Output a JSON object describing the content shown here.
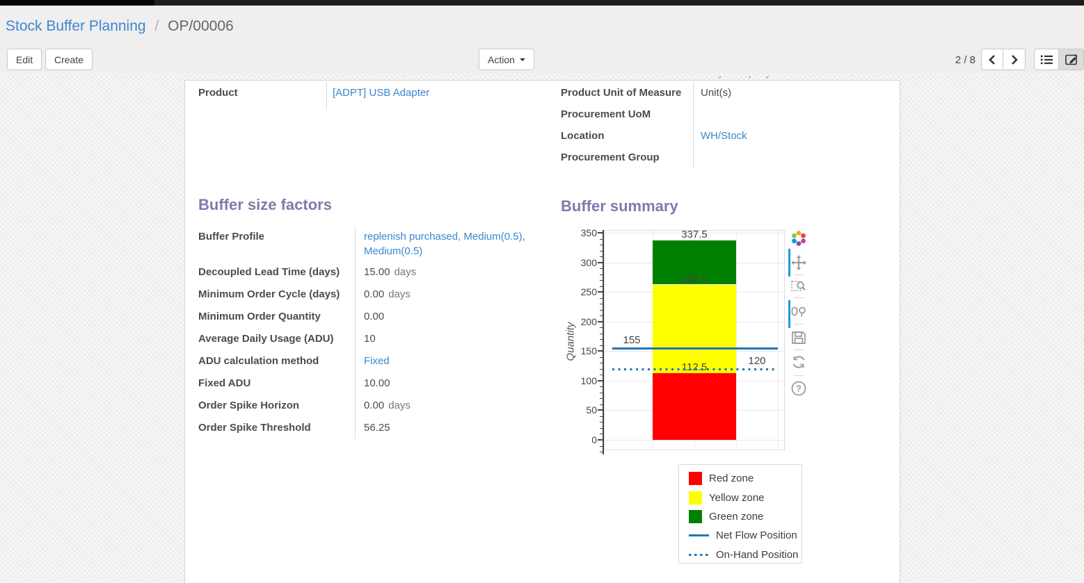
{
  "breadcrumb": {
    "parent": "Stock Buffer Planning",
    "separator": "/",
    "current": "OP/00006"
  },
  "control_panel": {
    "edit_label": "Edit",
    "create_label": "Create",
    "action_label": "Action",
    "pager": "2 / 8",
    "icons": [
      "previous-icon",
      "next-icon",
      "list-view-icon",
      "form-view-icon"
    ]
  },
  "form": {
    "clipped_top_value": "My Company",
    "left_fields": [
      {
        "label": "Product",
        "value": "[ADPT] USB Adapter",
        "link": true,
        "suffix": ""
      }
    ],
    "right_fields": [
      {
        "label": "Product Unit of Measure",
        "value": "Unit(s)",
        "link": false,
        "suffix": ""
      },
      {
        "label": "Procurement UoM",
        "value": "",
        "link": false,
        "suffix": ""
      },
      {
        "label": "Location",
        "value": "WH/Stock",
        "link": true,
        "suffix": ""
      },
      {
        "label": "Procurement Group",
        "value": "",
        "link": false,
        "suffix": ""
      }
    ],
    "factors_title": "Buffer size factors",
    "summary_title": "Buffer summary",
    "factors": [
      {
        "label": "Buffer Profile",
        "value": "replenish purchased, Medium(0.5), Medium(0.5)",
        "link": true,
        "suffix": ""
      },
      {
        "label": "Decoupled Lead Time (days)",
        "value": "15.00",
        "link": false,
        "suffix": "days"
      },
      {
        "label": "Minimum Order Cycle (days)",
        "value": "0.00",
        "link": false,
        "suffix": "days"
      },
      {
        "label": "Minimum Order Quantity",
        "value": "0.00",
        "link": false,
        "suffix": ""
      },
      {
        "label": "Average Daily Usage (ADU)",
        "value": "10",
        "link": false,
        "suffix": ""
      },
      {
        "label": "ADU calculation method",
        "value": "Fixed",
        "link": true,
        "suffix": ""
      },
      {
        "label": "Fixed ADU",
        "value": "10.00",
        "link": false,
        "suffix": ""
      },
      {
        "label": "Order Spike Horizon",
        "value": "0.00",
        "link": false,
        "suffix": "days"
      },
      {
        "label": "Order Spike Threshold",
        "value": "56.25",
        "link": false,
        "suffix": ""
      }
    ]
  },
  "chart_data": {
    "type": "bar",
    "title": "Buffer summary",
    "xlabel": "",
    "ylabel": "Quantity",
    "ylim": [
      0,
      350
    ],
    "ytick_step": 50,
    "yminor_step": 10,
    "grid": true,
    "zones": [
      {
        "name": "Red zone",
        "from": 0,
        "to": 112.5,
        "color": "#ff0000",
        "top_label": "112.5"
      },
      {
        "name": "Yellow zone",
        "from": 112.5,
        "to": 262.5,
        "color": "#ffff00",
        "top_label": "262.5"
      },
      {
        "name": "Green zone",
        "from": 262.5,
        "to": 337.5,
        "color": "#008000",
        "top_label": "337.5"
      }
    ],
    "reference_lines": [
      {
        "name": "Net Flow Position",
        "value": 155,
        "style": "solid",
        "color": "#1f77b4",
        "label": "155",
        "label_side": "left"
      },
      {
        "name": "On-Hand Position",
        "value": 120,
        "style": "dotted",
        "color": "#1f77b4",
        "label": "120",
        "label_side": "right"
      }
    ],
    "legend": [
      {
        "label": "Red zone",
        "swatch": "square",
        "color": "#ff0000"
      },
      {
        "label": "Yellow zone",
        "swatch": "square",
        "color": "#ffff00"
      },
      {
        "label": "Green zone",
        "swatch": "square",
        "color": "#008000"
      },
      {
        "label": "Net Flow Position",
        "swatch": "line",
        "color": "#1f77b4"
      },
      {
        "label": "On-Hand Position",
        "swatch": "dotted",
        "color": "#1f77b4"
      }
    ],
    "legend_position": "bottom-right",
    "modebar_icons": [
      "plotly-logo-icon",
      "pan-icon",
      "box-zoom-icon",
      "zoom-in-out-icon",
      "save-icon",
      "reset-axes-icon",
      "help-icon"
    ]
  },
  "colors": {
    "heading": "#7c7bad",
    "link": "#3a87cd",
    "label": "#4c4c4c",
    "net_flow_blue": "#1f77b4",
    "red_zone": "#ff0000",
    "yellow_zone": "#ffff00",
    "green_zone": "#008000"
  }
}
